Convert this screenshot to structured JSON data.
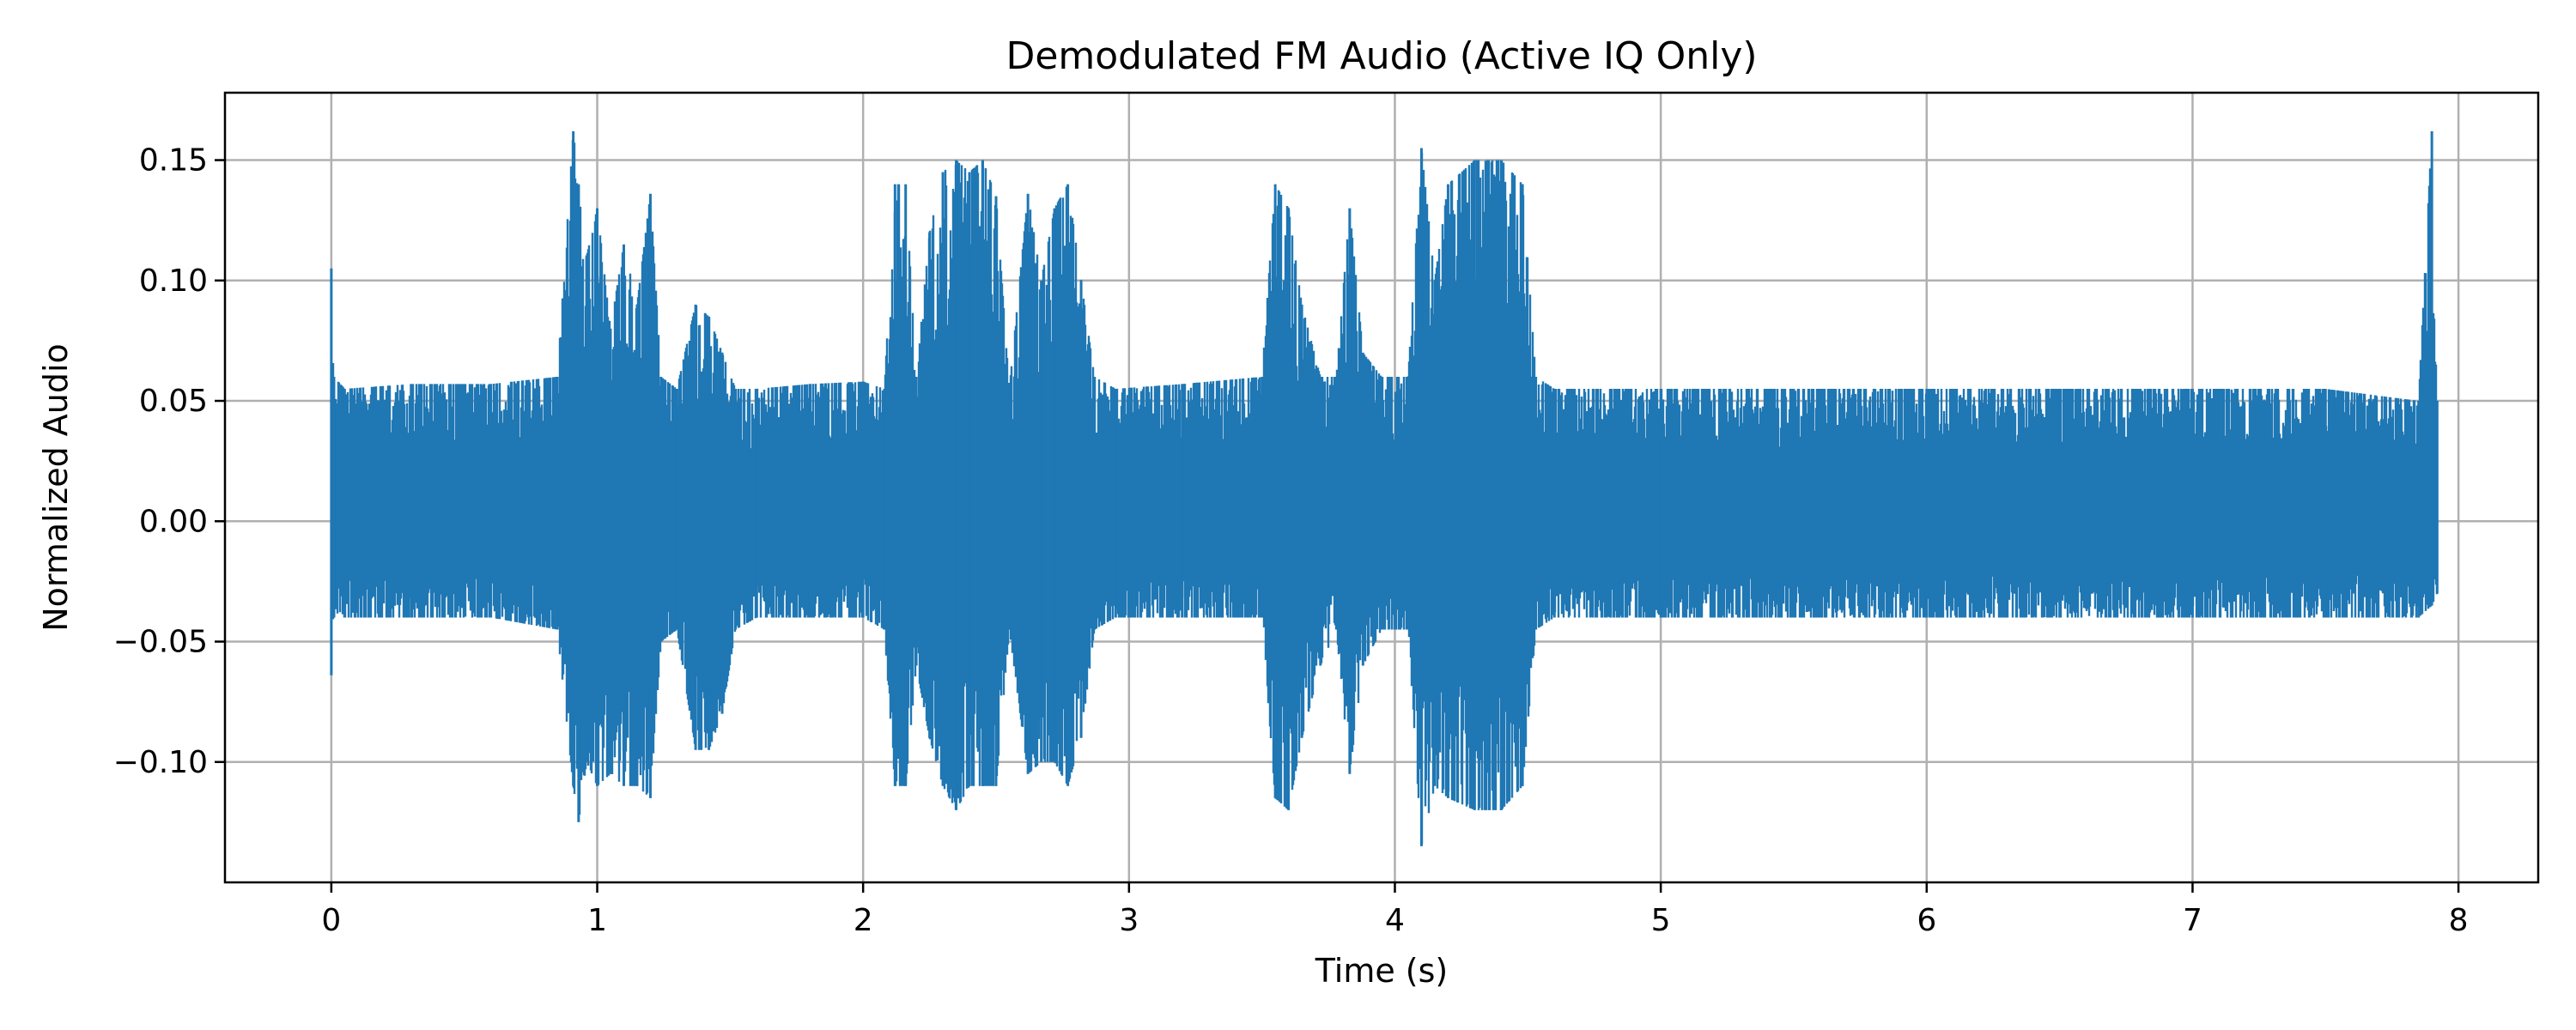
{
  "chart_data": {
    "type": "line",
    "title": "Demodulated FM Audio (Active IQ Only)",
    "xlabel": "Time (s)",
    "ylabel": "Normalized Audio",
    "xlim": [
      -0.4,
      8.3
    ],
    "ylim": [
      -0.15,
      0.178
    ],
    "xticks": [
      0,
      1,
      2,
      3,
      4,
      5,
      6,
      7,
      8
    ],
    "xtick_labels": [
      "0",
      "1",
      "2",
      "3",
      "4",
      "5",
      "6",
      "7",
      "8"
    ],
    "yticks": [
      -0.1,
      -0.05,
      0.0,
      0.05,
      0.1,
      0.15
    ],
    "ytick_labels": [
      "−0.10",
      "−0.05",
      "0.00",
      "0.05",
      "0.10",
      "0.15"
    ],
    "grid": true,
    "color": "#1f77b4",
    "series": [
      {
        "name": "",
        "x": [
          0.0,
          0.01,
          0.05,
          0.3,
          0.6,
          0.85,
          0.91,
          0.93,
          0.96,
          1.0,
          1.05,
          1.1,
          1.15,
          1.2,
          1.24,
          1.3,
          1.37,
          1.42,
          1.47,
          1.52,
          1.6,
          1.8,
          2.0,
          2.08,
          2.12,
          2.16,
          2.2,
          2.25,
          2.3,
          2.35,
          2.4,
          2.45,
          2.5,
          2.55,
          2.62,
          2.67,
          2.72,
          2.77,
          2.82,
          2.87,
          2.95,
          3.2,
          3.5,
          3.55,
          3.6,
          3.65,
          3.72,
          3.78,
          3.83,
          3.88,
          3.95,
          4.05,
          4.1,
          4.15,
          4.2,
          4.3,
          4.4,
          4.48,
          4.53,
          4.6,
          5.0,
          5.5,
          6.0,
          6.5,
          7.0,
          7.5,
          7.85,
          7.9,
          7.92
        ],
        "upper": [
          0.105,
          0.06,
          0.055,
          0.057,
          0.057,
          0.06,
          0.162,
          0.14,
          0.11,
          0.13,
          0.08,
          0.115,
          0.09,
          0.136,
          0.06,
          0.055,
          0.09,
          0.085,
          0.07,
          0.055,
          0.055,
          0.057,
          0.058,
          0.055,
          0.14,
          0.14,
          0.06,
          0.12,
          0.145,
          0.15,
          0.145,
          0.15,
          0.135,
          0.055,
          0.136,
          0.1,
          0.13,
          0.14,
          0.1,
          0.06,
          0.055,
          0.057,
          0.06,
          0.14,
          0.13,
          0.09,
          0.06,
          0.06,
          0.13,
          0.07,
          0.06,
          0.06,
          0.155,
          0.1,
          0.14,
          0.15,
          0.15,
          0.14,
          0.06,
          0.055,
          0.055,
          0.055,
          0.055,
          0.055,
          0.055,
          0.055,
          0.05,
          0.162,
          0.05
        ],
        "lower": [
          -0.064,
          -0.04,
          -0.04,
          -0.04,
          -0.04,
          -0.045,
          -0.11,
          -0.125,
          -0.1,
          -0.11,
          -0.105,
          -0.11,
          -0.11,
          -0.115,
          -0.05,
          -0.045,
          -0.095,
          -0.095,
          -0.08,
          -0.045,
          -0.04,
          -0.04,
          -0.04,
          -0.045,
          -0.11,
          -0.11,
          -0.06,
          -0.09,
          -0.11,
          -0.12,
          -0.11,
          -0.11,
          -0.11,
          -0.045,
          -0.105,
          -0.1,
          -0.1,
          -0.11,
          -0.09,
          -0.045,
          -0.04,
          -0.04,
          -0.04,
          -0.115,
          -0.12,
          -0.09,
          -0.06,
          -0.045,
          -0.105,
          -0.06,
          -0.045,
          -0.045,
          -0.135,
          -0.11,
          -0.115,
          -0.12,
          -0.12,
          -0.11,
          -0.045,
          -0.04,
          -0.04,
          -0.04,
          -0.04,
          -0.04,
          -0.04,
          -0.04,
          -0.04,
          -0.035,
          -0.03
        ]
      }
    ]
  }
}
